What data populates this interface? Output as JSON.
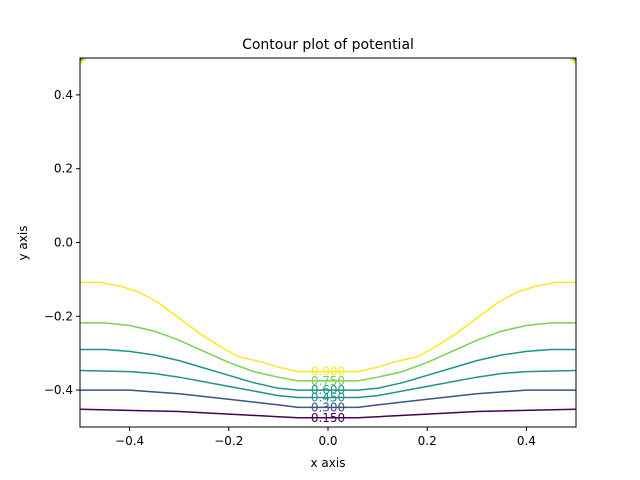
{
  "chart_data": {
    "type": "contour",
    "title": "Contour plot of potential",
    "xlabel": "x axis",
    "ylabel": "y axis",
    "xlim": [
      -0.5,
      0.5
    ],
    "ylim": [
      -0.5,
      0.5
    ],
    "grid": false,
    "x_ticks": [
      -0.4,
      -0.2,
      0.0,
      0.2,
      0.4
    ],
    "x_tick_labels": [
      "−0.4",
      "−0.2",
      "0.0",
      "0.2",
      "0.4"
    ],
    "y_ticks": [
      -0.4,
      -0.2,
      0.0,
      0.2,
      0.4
    ],
    "y_tick_labels": [
      "−0.4",
      "−0.2",
      "0.0",
      "0.2",
      "0.4"
    ],
    "levels": [
      {
        "level": 0.15,
        "label": "0.150",
        "color": "#440154",
        "x": [
          -0.5,
          -0.3,
          -0.2,
          -0.1,
          -0.06,
          0.06,
          0.1,
          0.2,
          0.3,
          0.5
        ],
        "y": [
          -0.452,
          -0.458,
          -0.465,
          -0.472,
          -0.475,
          -0.475,
          -0.472,
          -0.465,
          -0.458,
          -0.452
        ]
      },
      {
        "level": 0.3,
        "label": "0.300",
        "color": "#3b528b",
        "x": [
          -0.5,
          -0.4,
          -0.3,
          -0.2,
          -0.1,
          -0.06,
          0.06,
          0.1,
          0.2,
          0.3,
          0.4,
          0.5
        ],
        "y": [
          -0.4,
          -0.4,
          -0.41,
          -0.425,
          -0.44,
          -0.447,
          -0.447,
          -0.44,
          -0.425,
          -0.41,
          -0.4,
          -0.4
        ]
      },
      {
        "level": 0.45,
        "label": "0.450",
        "color": "#21918c",
        "x": [
          -0.5,
          -0.4,
          -0.35,
          -0.3,
          -0.2,
          -0.1,
          -0.06,
          0.06,
          0.1,
          0.2,
          0.3,
          0.35,
          0.4,
          0.5
        ],
        "y": [
          -0.347,
          -0.35,
          -0.355,
          -0.365,
          -0.39,
          -0.415,
          -0.42,
          -0.42,
          -0.415,
          -0.39,
          -0.365,
          -0.355,
          -0.35,
          -0.347
        ]
      },
      {
        "level": 0.6,
        "label": "0.600",
        "color": "#21918c",
        "x": [
          -0.5,
          -0.45,
          -0.4,
          -0.35,
          -0.3,
          -0.25,
          -0.2,
          -0.15,
          -0.1,
          -0.06,
          0.06,
          0.1,
          0.15,
          0.2,
          0.25,
          0.3,
          0.35,
          0.4,
          0.45,
          0.5
        ],
        "y": [
          -0.29,
          -0.29,
          -0.295,
          -0.305,
          -0.32,
          -0.34,
          -0.36,
          -0.38,
          -0.395,
          -0.4,
          -0.4,
          -0.395,
          -0.38,
          -0.36,
          -0.34,
          -0.32,
          -0.305,
          -0.295,
          -0.29,
          -0.29
        ]
      },
      {
        "level": 0.75,
        "label": "0.750",
        "color": "#7ad151",
        "x": [
          -0.5,
          -0.45,
          -0.4,
          -0.35,
          -0.3,
          -0.25,
          -0.2,
          -0.15,
          -0.1,
          -0.06,
          0.06,
          0.1,
          0.15,
          0.2,
          0.25,
          0.3,
          0.35,
          0.4,
          0.45,
          0.5
        ],
        "y": [
          -0.218,
          -0.218,
          -0.225,
          -0.24,
          -0.265,
          -0.295,
          -0.325,
          -0.35,
          -0.365,
          -0.375,
          -0.375,
          -0.365,
          -0.35,
          -0.325,
          -0.295,
          -0.265,
          -0.24,
          -0.225,
          -0.218,
          -0.218
        ]
      },
      {
        "level": 0.9,
        "label": "0.900",
        "color": "#fde725",
        "x": [
          -0.5,
          -0.46,
          -0.42,
          -0.38,
          -0.34,
          -0.3,
          -0.26,
          -0.22,
          -0.18,
          -0.13,
          -0.1,
          -0.06,
          0.06,
          0.1,
          0.13,
          0.18,
          0.22,
          0.26,
          0.3,
          0.34,
          0.38,
          0.42,
          0.46,
          0.5
        ],
        "y": [
          -0.108,
          -0.108,
          -0.118,
          -0.135,
          -0.165,
          -0.205,
          -0.245,
          -0.28,
          -0.31,
          -0.325,
          -0.338,
          -0.35,
          -0.35,
          -0.338,
          -0.325,
          -0.31,
          -0.28,
          -0.245,
          -0.205,
          -0.165,
          -0.135,
          -0.118,
          -0.108,
          -0.108
        ]
      }
    ],
    "corner_contours": [
      {
        "color": "#fde725",
        "x": [
          -0.487,
          -0.5
        ],
        "y": [
          0.5,
          0.483
        ]
      },
      {
        "color": "#7ad151",
        "x": [
          -0.492,
          -0.5
        ],
        "y": [
          0.5,
          0.49
        ]
      },
      {
        "color": "#21918c",
        "x": [
          -0.496,
          -0.5
        ],
        "y": [
          0.5,
          0.495
        ]
      },
      {
        "color": "#fde725",
        "x": [
          0.487,
          0.5
        ],
        "y": [
          0.5,
          0.483
        ]
      },
      {
        "color": "#7ad151",
        "x": [
          0.492,
          0.5
        ],
        "y": [
          0.5,
          0.49
        ]
      },
      {
        "color": "#21918c",
        "x": [
          0.496,
          0.5
        ],
        "y": [
          0.5,
          0.495
        ]
      }
    ]
  }
}
